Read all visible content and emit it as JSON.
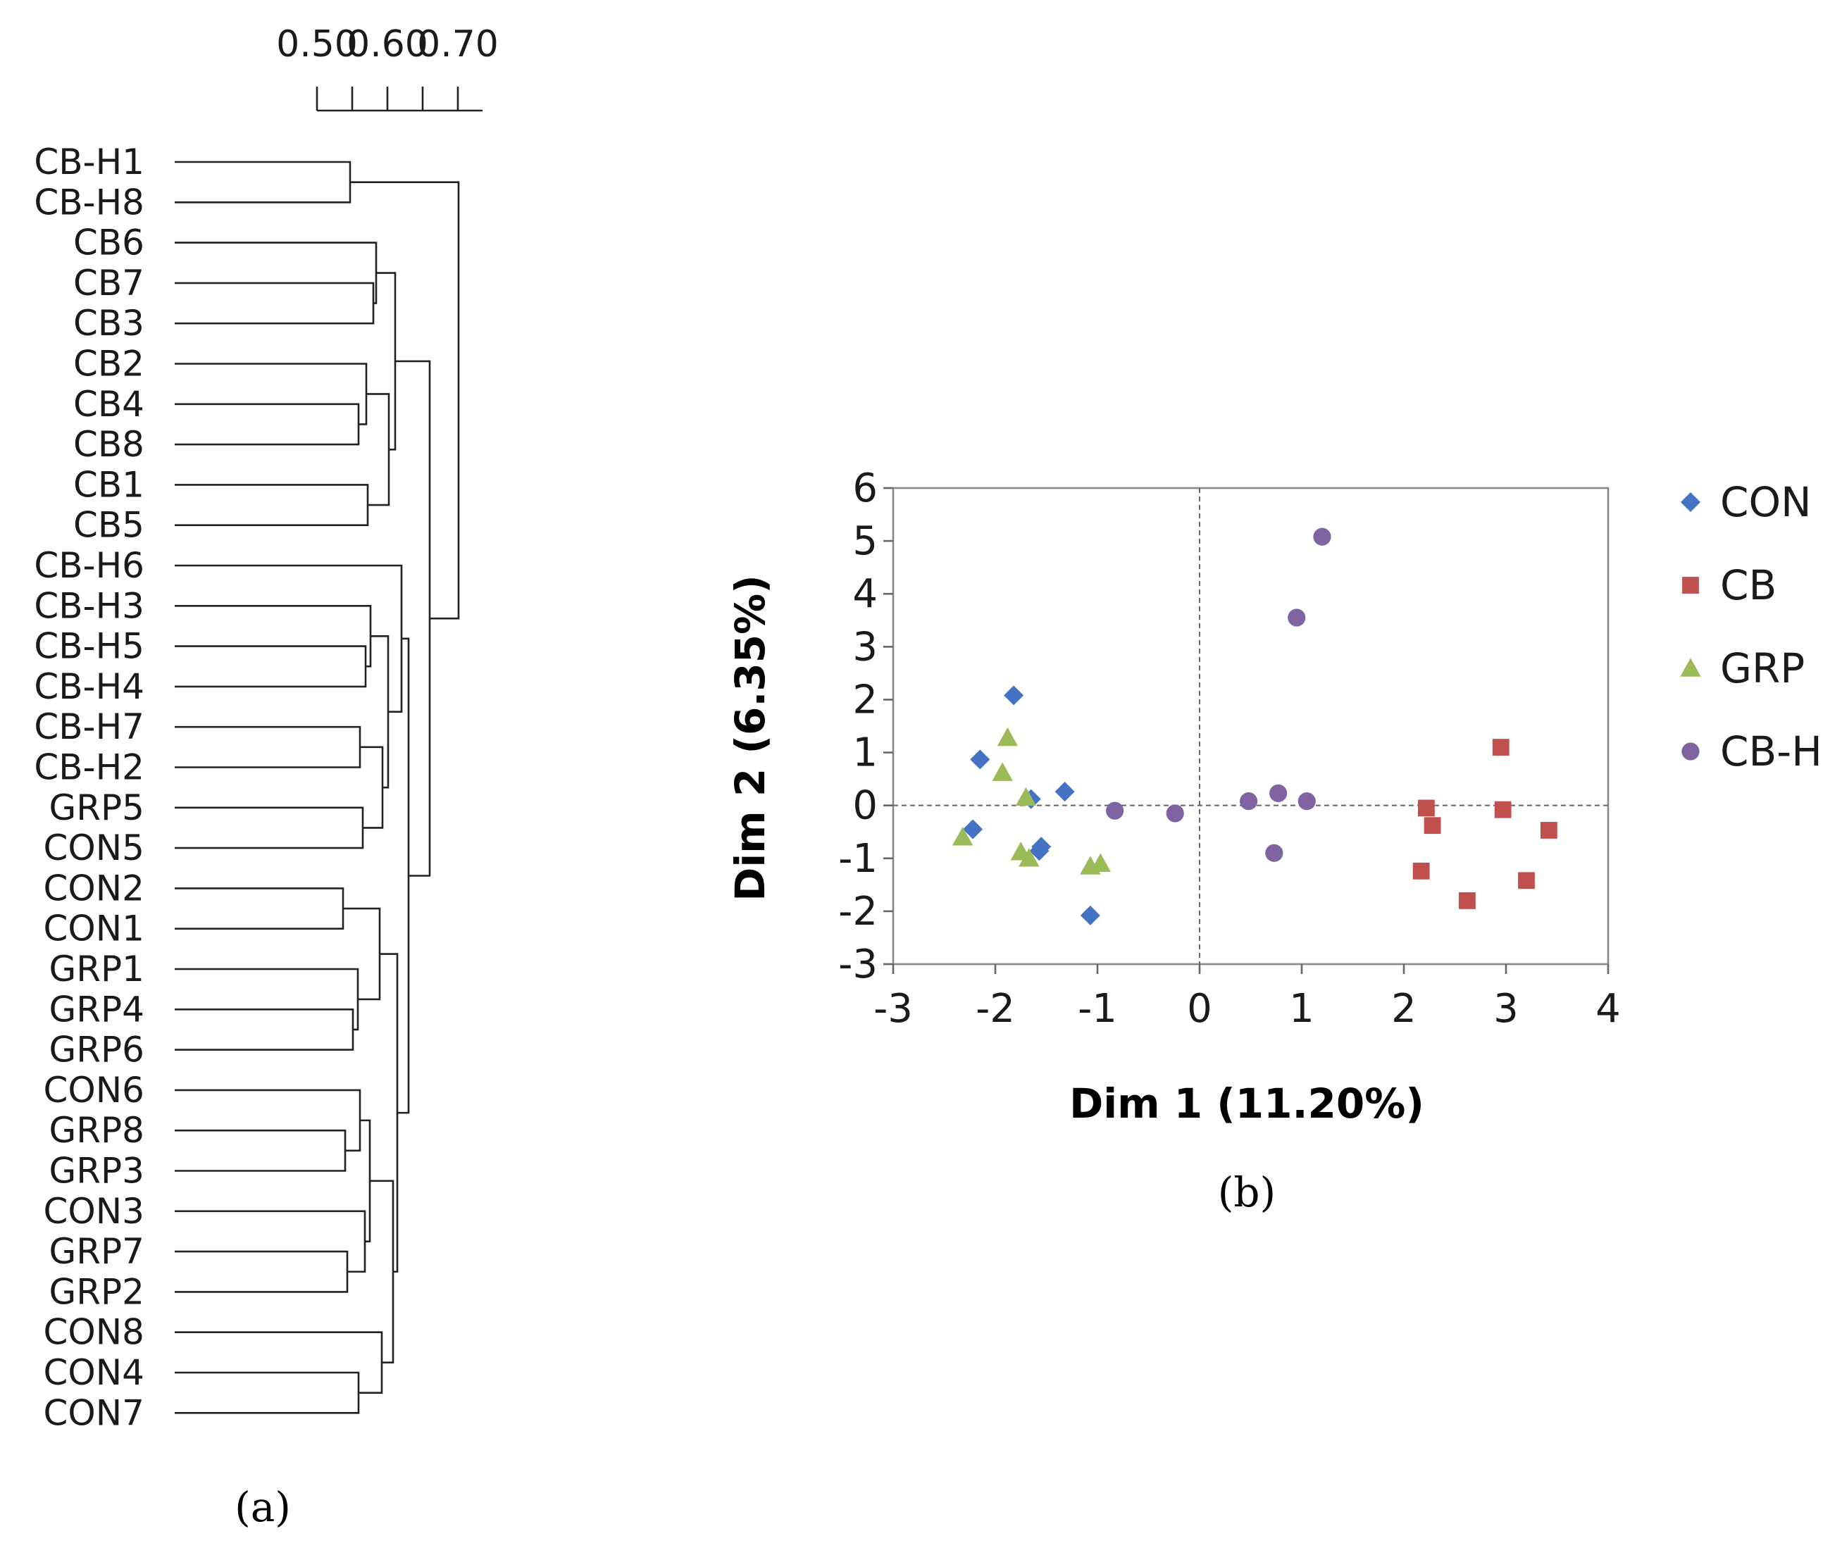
{
  "chart_data": [
    {
      "type": "dendrogram",
      "caption": "(a)",
      "axis": {
        "ticks": [
          0.5,
          0.6,
          0.7
        ],
        "tick_labels": [
          "0.50",
          "0.60",
          "0.70"
        ],
        "minor_ticks": [
          0.55,
          0.65
        ],
        "range": [
          0.5,
          0.735
        ]
      },
      "leaves": [
        "CB-H1",
        "CB-H8",
        "CB6",
        "CB7",
        "CB3",
        "CB2",
        "CB4",
        "CB8",
        "CB1",
        "CB5",
        "CB-H6",
        "CB-H3",
        "CB-H5",
        "CB-H4",
        "CB-H7",
        "CB-H2",
        "GRP5",
        "CON5",
        "CON2",
        "CON1",
        "GRP1",
        "GRP4",
        "GRP6",
        "CON6",
        "GRP8",
        "GRP3",
        "CON3",
        "GRP7",
        "GRP2",
        "CON8",
        "CON4",
        "CON7"
      ],
      "merges": [
        {
          "id": "m1",
          "children": [
            "CB-H1",
            "CB-H8"
          ],
          "height": 0.547
        },
        {
          "id": "m2",
          "children": [
            "CB7",
            "CB3"
          ],
          "height": 0.58
        },
        {
          "id": "m3",
          "children": [
            "CB6",
            "m2"
          ],
          "height": 0.584
        },
        {
          "id": "m4",
          "children": [
            "CB4",
            "CB8"
          ],
          "height": 0.559
        },
        {
          "id": "m5",
          "children": [
            "CB2",
            "m4"
          ],
          "height": 0.57
        },
        {
          "id": "m6",
          "children": [
            "CB1",
            "CB5"
          ],
          "height": 0.572
        },
        {
          "id": "m7",
          "children": [
            "m5",
            "m6"
          ],
          "height": 0.602
        },
        {
          "id": "m8",
          "children": [
            "m3",
            "m7"
          ],
          "height": 0.611
        },
        {
          "id": "m9",
          "children": [
            "CB-H5",
            "CB-H4"
          ],
          "height": 0.569
        },
        {
          "id": "m10",
          "children": [
            "CB-H3",
            "m9"
          ],
          "height": 0.576
        },
        {
          "id": "m11",
          "children": [
            "CB-H7",
            "CB-H2"
          ],
          "height": 0.561
        },
        {
          "id": "m12",
          "children": [
            "GRP5",
            "CON5"
          ],
          "height": 0.565
        },
        {
          "id": "m13",
          "children": [
            "m11",
            "m12"
          ],
          "height": 0.593
        },
        {
          "id": "m14",
          "children": [
            "m10",
            "m13"
          ],
          "height": 0.601
        },
        {
          "id": "m15",
          "children": [
            "CB-H6",
            "m14"
          ],
          "height": 0.62
        },
        {
          "id": "m16",
          "children": [
            "CON2",
            "CON1"
          ],
          "height": 0.537
        },
        {
          "id": "m17",
          "children": [
            "GRP4",
            "GRP6"
          ],
          "height": 0.551
        },
        {
          "id": "m18",
          "children": [
            "GRP1",
            "m17"
          ],
          "height": 0.558
        },
        {
          "id": "m19",
          "children": [
            "m16",
            "m18"
          ],
          "height": 0.589
        },
        {
          "id": "m20",
          "children": [
            "GRP8",
            "GRP3"
          ],
          "height": 0.54
        },
        {
          "id": "m21",
          "children": [
            "CON6",
            "m20"
          ],
          "height": 0.561
        },
        {
          "id": "m22",
          "children": [
            "GRP7",
            "GRP2"
          ],
          "height": 0.543
        },
        {
          "id": "m23",
          "children": [
            "CON3",
            "m22"
          ],
          "height": 0.568
        },
        {
          "id": "m24",
          "children": [
            "m21",
            "m23"
          ],
          "height": 0.575
        },
        {
          "id": "m25",
          "children": [
            "CON4",
            "CON7"
          ],
          "height": 0.559
        },
        {
          "id": "m26",
          "children": [
            "CON8",
            "m25"
          ],
          "height": 0.592
        },
        {
          "id": "m27",
          "children": [
            "m24",
            "m26"
          ],
          "height": 0.608
        },
        {
          "id": "m28",
          "children": [
            "m19",
            "m27"
          ],
          "height": 0.614
        },
        {
          "id": "m29",
          "children": [
            "m15",
            "m28"
          ],
          "height": 0.63
        },
        {
          "id": "m30",
          "children": [
            "m8",
            "m29"
          ],
          "height": 0.66
        },
        {
          "id": "m31",
          "children": [
            "m1",
            "m30"
          ],
          "height": 0.701
        }
      ]
    },
    {
      "type": "scatter",
      "caption": "(b)",
      "xlabel": "Dim 1 (11.20%)",
      "ylabel": "Dim 2 (6.35%)",
      "xlim": [
        -3,
        4
      ],
      "ylim": [
        -3,
        6
      ],
      "xticks": [
        -3,
        -2,
        -1,
        0,
        1,
        2,
        3,
        4
      ],
      "yticks": [
        -3,
        -2,
        -1,
        0,
        1,
        2,
        3,
        4,
        5,
        6
      ],
      "legend_position": "right",
      "series": [
        {
          "name": "CON",
          "color": "#4472c4",
          "marker": "diamond",
          "points": [
            [
              -1.82,
              2.08
            ],
            [
              -2.15,
              0.87
            ],
            [
              -1.65,
              0.12
            ],
            [
              -1.32,
              0.26
            ],
            [
              -2.22,
              -0.45
            ],
            [
              -1.55,
              -0.78
            ],
            [
              -1.57,
              -0.86
            ],
            [
              -1.07,
              -2.08
            ]
          ]
        },
        {
          "name": "CB",
          "color": "#c0504d",
          "marker": "square",
          "points": [
            [
              2.95,
              1.1
            ],
            [
              2.22,
              -0.05
            ],
            [
              2.28,
              -0.38
            ],
            [
              2.97,
              -0.08
            ],
            [
              3.42,
              -0.47
            ],
            [
              2.17,
              -1.24
            ],
            [
              3.2,
              -1.42
            ],
            [
              2.62,
              -1.8
            ]
          ]
        },
        {
          "name": "GRP",
          "color": "#9bbb59",
          "marker": "triangle",
          "points": [
            [
              -1.88,
              1.28
            ],
            [
              -1.93,
              0.62
            ],
            [
              -1.7,
              0.15
            ],
            [
              -2.32,
              -0.6
            ],
            [
              -1.75,
              -0.88
            ],
            [
              -1.67,
              -1.0
            ],
            [
              -1.07,
              -1.15
            ],
            [
              -0.97,
              -1.1
            ]
          ]
        },
        {
          "name": "CB-H",
          "color": "#8064a2",
          "marker": "circle",
          "points": [
            [
              1.2,
              5.08
            ],
            [
              0.95,
              3.55
            ],
            [
              -0.83,
              -0.1
            ],
            [
              -0.24,
              -0.15
            ],
            [
              0.48,
              0.08
            ],
            [
              0.77,
              0.23
            ],
            [
              1.05,
              0.08
            ],
            [
              0.73,
              -0.9
            ]
          ]
        }
      ]
    }
  ]
}
